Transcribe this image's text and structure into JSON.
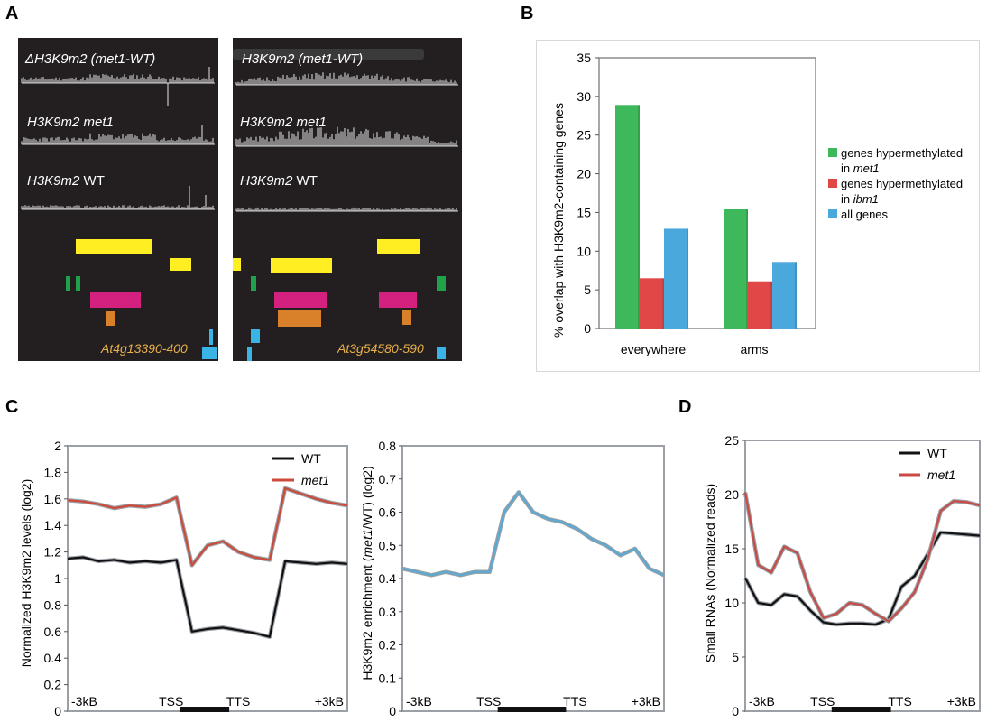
{
  "panel_labels": {
    "a": "A",
    "b": "B",
    "c": "C",
    "d": "D"
  },
  "panel_a": {
    "left": {
      "labels": [
        {
          "text": "ΔH3K9m2 (met1-WT)",
          "style": "italic"
        },
        {
          "gene": "H3K9m2",
          "cond": "met1",
          "cond_style": "italic"
        },
        {
          "gene": "H3K9m2",
          "cond": "WT",
          "cond_style": "normal"
        }
      ],
      "locus": "At4g13390-400"
    },
    "right": {
      "labels": [
        {
          "text": "H3K9m2 (met1-WT)",
          "style": "italic"
        },
        {
          "gene": "H3K9m2",
          "cond": "met1",
          "cond_style": "italic"
        },
        {
          "gene": "H3K9m2",
          "cond": "WT",
          "cond_style": "normal"
        }
      ],
      "locus": "At3g54580-590"
    },
    "colors": {
      "background": "#231f20",
      "yellow": "#ffee22",
      "green": "#1fa34a",
      "magenta": "#d4217f",
      "orange": "#d9802a",
      "cyan": "#3ab4e6"
    }
  },
  "chart_data": [
    {
      "id": "B",
      "type": "bar",
      "categories": [
        "everywhere",
        "arms"
      ],
      "ylabel": "% overlap with H3K9m2-containing genes",
      "ylim": [
        0,
        35
      ],
      "yticks": [
        0,
        5,
        10,
        15,
        20,
        25,
        30,
        35
      ],
      "series": [
        {
          "name": "genes hypermethylated in met1",
          "name_parts": [
            "genes hypermethylated",
            "in ",
            "met1"
          ],
          "color": "#3db85a",
          "values": [
            28.9,
            15.4
          ]
        },
        {
          "name": "genes hypermethylated in ibm1",
          "name_parts": [
            "genes hypermethylated",
            "in ",
            "ibm1"
          ],
          "color": "#e04848",
          "values": [
            6.5,
            6.1
          ]
        },
        {
          "name": "all genes",
          "name_parts": [
            "all genes",
            "",
            ""
          ],
          "color": "#4aa8dc",
          "values": [
            12.9,
            8.6
          ]
        }
      ],
      "legend": "right",
      "grid": false
    },
    {
      "id": "C-left",
      "type": "line",
      "ylabel": "Normalized H3K9m2 levels (log2)",
      "ylim": [
        0,
        2
      ],
      "yticks": [
        "0",
        "0.2",
        "0.4",
        "0.6",
        "0.8",
        "1",
        "1.2",
        "1.4",
        "1.6",
        "1.8",
        "2"
      ],
      "xlabels": [
        "-3kB",
        "TSS",
        "TTS",
        "+3kB"
      ],
      "x": [
        0,
        10,
        20,
        30,
        40,
        50,
        60,
        70,
        80,
        90,
        100,
        110,
        120,
        130,
        140,
        150,
        160,
        170,
        180
      ],
      "series": [
        {
          "name": "WT",
          "color": "#111111",
          "values": [
            1.15,
            1.16,
            1.13,
            1.14,
            1.12,
            1.13,
            1.12,
            1.14,
            0.6,
            0.62,
            0.63,
            0.61,
            0.59,
            0.56,
            1.13,
            1.12,
            1.11,
            1.12,
            1.11
          ]
        },
        {
          "name": "met1",
          "color": "#cc4a3a",
          "values": [
            1.59,
            1.58,
            1.56,
            1.53,
            1.55,
            1.54,
            1.56,
            1.61,
            1.1,
            1.25,
            1.28,
            1.2,
            1.16,
            1.14,
            1.68,
            1.64,
            1.6,
            1.57,
            1.55
          ]
        }
      ],
      "legend": "top-right",
      "grid": false
    },
    {
      "id": "C-right",
      "type": "line",
      "ylabel_parts": [
        "H3K9m2 enrichment (",
        "met1",
        "/WT) (log2)"
      ],
      "ylim": [
        0,
        0.8
      ],
      "yticks": [
        "0",
        "0.1",
        "0.2",
        "0.3",
        "0.4",
        "0.5",
        "0.6",
        "0.7",
        "0.8"
      ],
      "xlabels": [
        "-3kB",
        "TSS",
        "TTS",
        "+3kB"
      ],
      "x": [
        0,
        10,
        20,
        30,
        40,
        50,
        60,
        70,
        80,
        90,
        100,
        110,
        120,
        130,
        140,
        150,
        160,
        170,
        180
      ],
      "series": [
        {
          "name": "",
          "color": "#5aaad4",
          "values": [
            0.43,
            0.42,
            0.41,
            0.42,
            0.41,
            0.42,
            0.42,
            0.6,
            0.66,
            0.6,
            0.58,
            0.57,
            0.55,
            0.52,
            0.5,
            0.47,
            0.49,
            0.43,
            0.41
          ]
        }
      ],
      "grid": false
    },
    {
      "id": "D",
      "type": "line",
      "ylabel": "Small RNAs (Normalized reads)",
      "ylim": [
        0,
        25
      ],
      "yticks": [
        "0",
        "5",
        "10",
        "15",
        "20",
        "25"
      ],
      "xlabels": [
        "-3kB",
        "TSS",
        "TTS",
        "+3kB"
      ],
      "x": [
        0,
        10,
        20,
        30,
        40,
        50,
        60,
        70,
        80,
        90,
        100,
        110,
        120,
        130,
        140,
        150,
        160,
        170,
        180
      ],
      "series": [
        {
          "name": "WT",
          "color": "#111111",
          "values": [
            12.3,
            10.0,
            9.8,
            10.8,
            10.6,
            9.3,
            8.2,
            8.0,
            8.1,
            8.1,
            8.0,
            8.5,
            11.5,
            12.5,
            14.5,
            16.5,
            16.4,
            16.3,
            16.2
          ]
        },
        {
          "name": "met1",
          "color": "#c94a44",
          "values": [
            20.2,
            13.5,
            12.8,
            15.2,
            14.6,
            11.0,
            8.6,
            9.0,
            10.0,
            9.8,
            9.0,
            8.3,
            9.5,
            11.0,
            14.0,
            18.5,
            19.4,
            19.3,
            19.0
          ]
        }
      ],
      "legend": "top-right",
      "grid": false
    }
  ]
}
